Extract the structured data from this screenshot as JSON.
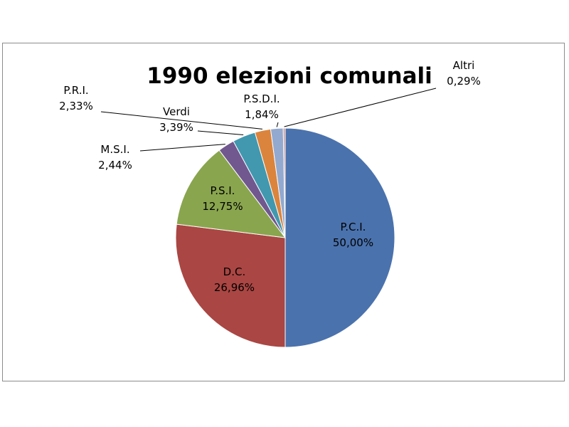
{
  "chart_data": {
    "type": "pie",
    "title": "1990 elezioni comunali",
    "slices": [
      {
        "name": "P.C.I.",
        "value": 50.0,
        "label": "50,00%",
        "color": "#4a72ad"
      },
      {
        "name": "D.C.",
        "value": 26.96,
        "label": "26,96%",
        "color": "#aa4643"
      },
      {
        "name": "P.S.I.",
        "value": 12.75,
        "label": "12,75%",
        "color": "#89a54e"
      },
      {
        "name": "M.S.I.",
        "value": 2.44,
        "label": "2,44%",
        "color": "#71588f"
      },
      {
        "name": "Verdi",
        "value": 3.39,
        "label": "3,39%",
        "color": "#4198af"
      },
      {
        "name": "P.R.I.",
        "value": 2.33,
        "label": "2,33%",
        "color": "#db843d"
      },
      {
        "name": "P.S.D.I.",
        "value": 1.84,
        "label": "1,84%",
        "color": "#93a9cf"
      },
      {
        "name": "Altri",
        "value": 0.29,
        "label": "0,29%",
        "color": "#d19392"
      }
    ],
    "legend": "none"
  }
}
